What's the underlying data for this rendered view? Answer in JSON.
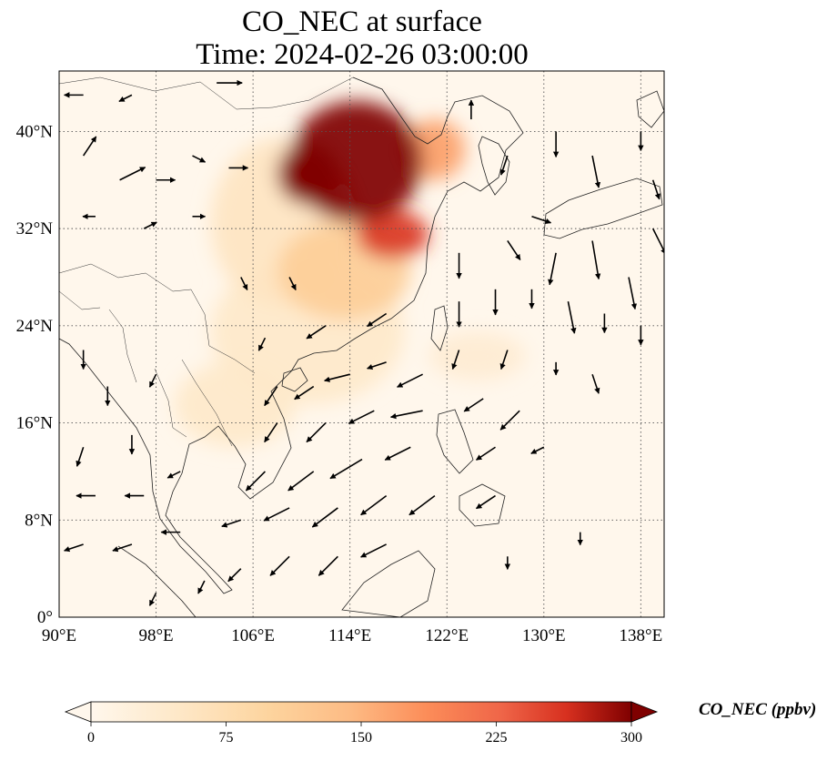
{
  "title": {
    "line1": "CO_NEC at surface",
    "line2": "Time: 2024-02-26 03:00:00"
  },
  "map": {
    "projection": "PlateCarree",
    "lon_range": [
      90,
      140
    ],
    "lat_range": [
      0,
      45
    ],
    "gridlines": "dotted",
    "lon_ticks": [
      {
        "value": 90,
        "label": "90°E"
      },
      {
        "value": 98,
        "label": "98°E"
      },
      {
        "value": 106,
        "label": "106°E"
      },
      {
        "value": 114,
        "label": "114°E"
      },
      {
        "value": 122,
        "label": "122°E"
      },
      {
        "value": 130,
        "label": "130°E"
      },
      {
        "value": 138,
        "label": "138°E"
      }
    ],
    "lat_ticks": [
      {
        "value": 0,
        "label": "0°"
      },
      {
        "value": 8,
        "label": "8°N"
      },
      {
        "value": 16,
        "label": "16°N"
      },
      {
        "value": 24,
        "label": "24°N"
      },
      {
        "value": 32,
        "label": "32°N"
      },
      {
        "value": 40,
        "label": "40°N"
      }
    ],
    "field": "CO_NEC",
    "plumes": [
      {
        "lon": 114.5,
        "lat": 37.5,
        "rlon": 5.5,
        "rlat": 5.0,
        "value": 310
      },
      {
        "lon": 110.5,
        "lat": 36.5,
        "rlon": 2.5,
        "rlat": 2.5,
        "value": 320
      },
      {
        "lon": 117.5,
        "lat": 31.5,
        "rlon": 3.0,
        "rlat": 2.0,
        "value": 260
      },
      {
        "lon": 121.0,
        "lat": 38.5,
        "rlon": 2.5,
        "rlat": 2.5,
        "value": 170
      },
      {
        "lon": 113.5,
        "lat": 28.5,
        "rlon": 5.5,
        "rlat": 4.0,
        "value": 110
      },
      {
        "lon": 110.5,
        "lat": 23.5,
        "rlon": 8.0,
        "rlat": 6.0,
        "value": 45
      },
      {
        "lon": 104.5,
        "lat": 17.5,
        "rlon": 5.0,
        "rlat": 3.5,
        "value": 45
      },
      {
        "lon": 108.5,
        "lat": 32.5,
        "rlon": 6.0,
        "rlat": 7.0,
        "value": 55
      },
      {
        "lon": 124.5,
        "lat": 21.5,
        "rlon": 4.0,
        "rlat": 2.0,
        "value": 35
      }
    ],
    "wind_vectors": [
      {
        "lon": 92,
        "lat": 43,
        "u": -3,
        "v": 0
      },
      {
        "lon": 96,
        "lat": 43,
        "u": -2,
        "v": -1
      },
      {
        "lon": 103,
        "lat": 44,
        "u": 4,
        "v": 0
      },
      {
        "lon": 92,
        "lat": 38,
        "u": 2,
        "v": 3
      },
      {
        "lon": 95,
        "lat": 36,
        "u": 4,
        "v": 2
      },
      {
        "lon": 98,
        "lat": 36,
        "u": 3,
        "v": 0
      },
      {
        "lon": 101,
        "lat": 38,
        "u": 2,
        "v": -1
      },
      {
        "lon": 104,
        "lat": 37,
        "u": 3,
        "v": 0
      },
      {
        "lon": 93,
        "lat": 33,
        "u": -2,
        "v": 0
      },
      {
        "lon": 97,
        "lat": 32,
        "u": 2,
        "v": 1
      },
      {
        "lon": 101,
        "lat": 33,
        "u": 2,
        "v": 0
      },
      {
        "lon": 124,
        "lat": 41,
        "u": 0,
        "v": 3
      },
      {
        "lon": 127,
        "lat": 38,
        "u": -1,
        "v": -3
      },
      {
        "lon": 131,
        "lat": 40,
        "u": 0,
        "v": -4
      },
      {
        "lon": 134,
        "lat": 38,
        "u": 1,
        "v": -5
      },
      {
        "lon": 138,
        "lat": 40,
        "u": 0,
        "v": -3
      },
      {
        "lon": 139,
        "lat": 36,
        "u": 1,
        "v": -3
      },
      {
        "lon": 129,
        "lat": 33,
        "u": 3,
        "v": -1
      },
      {
        "lon": 123,
        "lat": 30,
        "u": 0,
        "v": -4
      },
      {
        "lon": 127,
        "lat": 31,
        "u": 2,
        "v": -3
      },
      {
        "lon": 131,
        "lat": 30,
        "u": -1,
        "v": -5
      },
      {
        "lon": 134,
        "lat": 31,
        "u": 1,
        "v": -6
      },
      {
        "lon": 137,
        "lat": 28,
        "u": 1,
        "v": -5
      },
      {
        "lon": 139,
        "lat": 32,
        "u": 2,
        "v": -4
      },
      {
        "lon": 123,
        "lat": 26,
        "u": 0,
        "v": -4
      },
      {
        "lon": 126,
        "lat": 27,
        "u": 0,
        "v": -4
      },
      {
        "lon": 129,
        "lat": 27,
        "u": 0,
        "v": -3
      },
      {
        "lon": 132,
        "lat": 26,
        "u": 1,
        "v": -5
      },
      {
        "lon": 135,
        "lat": 25,
        "u": 0,
        "v": -3
      },
      {
        "lon": 138,
        "lat": 24,
        "u": 0,
        "v": -3
      },
      {
        "lon": 123,
        "lat": 22,
        "u": -1,
        "v": -3
      },
      {
        "lon": 127,
        "lat": 22,
        "u": -1,
        "v": -3
      },
      {
        "lon": 131,
        "lat": 21,
        "u": 0,
        "v": -2
      },
      {
        "lon": 134,
        "lat": 20,
        "u": 1,
        "v": -3
      },
      {
        "lon": 120,
        "lat": 20,
        "u": -4,
        "v": -2
      },
      {
        "lon": 117,
        "lat": 21,
        "u": -3,
        "v": -1
      },
      {
        "lon": 114,
        "lat": 20,
        "u": -4,
        "v": -1
      },
      {
        "lon": 111,
        "lat": 19,
        "u": -3,
        "v": -2
      },
      {
        "lon": 108,
        "lat": 19,
        "u": -2,
        "v": -3
      },
      {
        "lon": 125,
        "lat": 18,
        "u": -3,
        "v": -2
      },
      {
        "lon": 128,
        "lat": 17,
        "u": -3,
        "v": -3
      },
      {
        "lon": 120,
        "lat": 17,
        "u": -5,
        "v": -1
      },
      {
        "lon": 116,
        "lat": 17,
        "u": -4,
        "v": -2
      },
      {
        "lon": 112,
        "lat": 16,
        "u": -3,
        "v": -3
      },
      {
        "lon": 108,
        "lat": 16,
        "u": -2,
        "v": -3
      },
      {
        "lon": 119,
        "lat": 14,
        "u": -4,
        "v": -2
      },
      {
        "lon": 115,
        "lat": 13,
        "u": -5,
        "v": -3
      },
      {
        "lon": 111,
        "lat": 12,
        "u": -4,
        "v": -3
      },
      {
        "lon": 107,
        "lat": 12,
        "u": -3,
        "v": -3
      },
      {
        "lon": 126,
        "lat": 14,
        "u": -3,
        "v": -2
      },
      {
        "lon": 130,
        "lat": 14,
        "u": -2,
        "v": -1
      },
      {
        "lon": 117,
        "lat": 10,
        "u": -4,
        "v": -3
      },
      {
        "lon": 113,
        "lat": 9,
        "u": -4,
        "v": -3
      },
      {
        "lon": 109,
        "lat": 9,
        "u": -4,
        "v": -2
      },
      {
        "lon": 105,
        "lat": 8,
        "u": -3,
        "v": -1
      },
      {
        "lon": 121,
        "lat": 10,
        "u": -4,
        "v": -3
      },
      {
        "lon": 126,
        "lat": 10,
        "u": -3,
        "v": -2
      },
      {
        "lon": 117,
        "lat": 6,
        "u": -4,
        "v": -2
      },
      {
        "lon": 113,
        "lat": 5,
        "u": -3,
        "v": -3
      },
      {
        "lon": 109,
        "lat": 5,
        "u": -3,
        "v": -3
      },
      {
        "lon": 105,
        "lat": 4,
        "u": -2,
        "v": -2
      },
      {
        "lon": 100,
        "lat": 7,
        "u": -3,
        "v": 0
      },
      {
        "lon": 96,
        "lat": 6,
        "u": -3,
        "v": -1
      },
      {
        "lon": 92,
        "lat": 6,
        "u": -3,
        "v": -1
      },
      {
        "lon": 93,
        "lat": 10,
        "u": -3,
        "v": 0
      },
      {
        "lon": 97,
        "lat": 10,
        "u": -3,
        "v": 0
      },
      {
        "lon": 92,
        "lat": 14,
        "u": -1,
        "v": -3
      },
      {
        "lon": 96,
        "lat": 15,
        "u": 0,
        "v": -3
      },
      {
        "lon": 100,
        "lat": 12,
        "u": -2,
        "v": -1
      },
      {
        "lon": 94,
        "lat": 19,
        "u": 0,
        "v": -3
      },
      {
        "lon": 98,
        "lat": 20,
        "u": -1,
        "v": -2
      },
      {
        "lon": 92,
        "lat": 22,
        "u": 0,
        "v": -3
      },
      {
        "lon": 102,
        "lat": 3,
        "u": -1,
        "v": -2
      },
      {
        "lon": 98,
        "lat": 2,
        "u": -1,
        "v": -2
      },
      {
        "lon": 127,
        "lat": 5,
        "u": 0,
        "v": -2
      },
      {
        "lon": 133,
        "lat": 7,
        "u": 0,
        "v": -2
      },
      {
        "lon": 105,
        "lat": 28,
        "u": 1,
        "v": -2
      },
      {
        "lon": 109,
        "lat": 28,
        "u": 1,
        "v": -2
      },
      {
        "lon": 112,
        "lat": 24,
        "u": -3,
        "v": -2
      },
      {
        "lon": 117,
        "lat": 25,
        "u": -3,
        "v": -2
      },
      {
        "lon": 107,
        "lat": 23,
        "u": -1,
        "v": -2
      }
    ]
  },
  "colorbar": {
    "colormap": "OrRd",
    "range": [
      0,
      300
    ],
    "extend": "both",
    "tick_labels": [
      "0",
      "75",
      "150",
      "225",
      "300"
    ],
    "label": "CO_NEC (ppbv)"
  }
}
